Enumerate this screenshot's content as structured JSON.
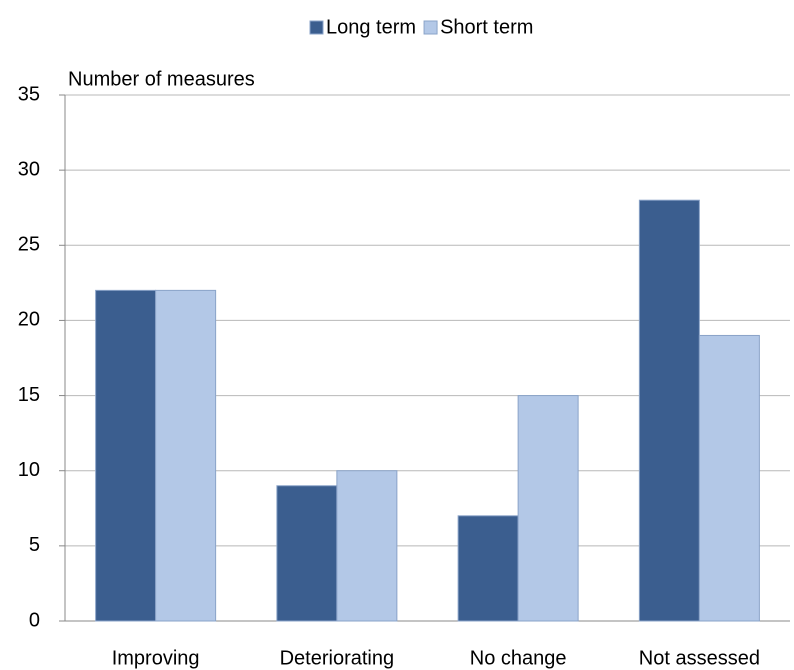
{
  "chart_data": {
    "type": "bar",
    "y_label": "Number of measures",
    "categories": [
      "Improving",
      "Deteriorating",
      "No change",
      "Not assessed"
    ],
    "series": [
      {
        "name": "Long term",
        "color": "#3b5e8f",
        "values": [
          22,
          9,
          7,
          28
        ]
      },
      {
        "name": "Short term",
        "color": "#b3c8e7",
        "values": [
          22,
          10,
          15,
          19
        ]
      }
    ],
    "ylim": [
      0,
      35
    ],
    "yticks": [
      0,
      5,
      10,
      15,
      20,
      25,
      30,
      35
    ],
    "grid": true,
    "legend": "top"
  }
}
